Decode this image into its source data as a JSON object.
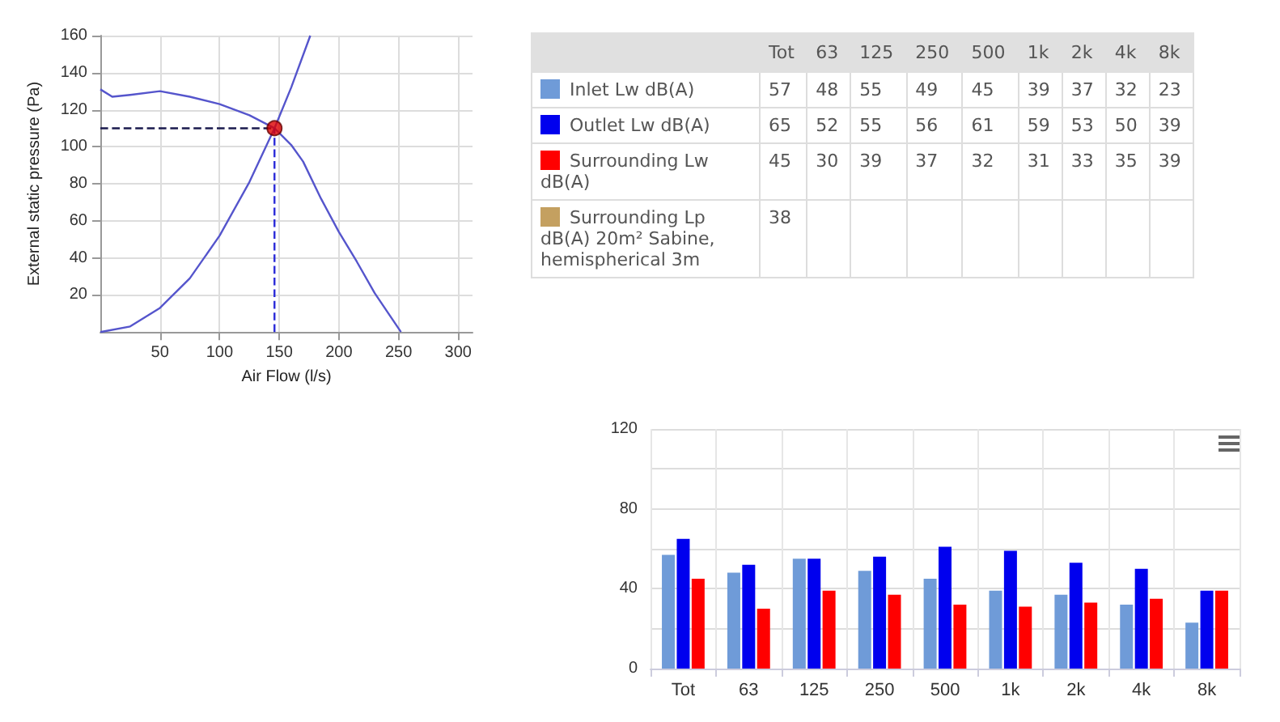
{
  "chart_data": [
    {
      "type": "line",
      "xlabel": "Air Flow (l/s)",
      "ylabel": "External static pressure (Pa)",
      "xlim": [
        0,
        312
      ],
      "xticks": [
        50,
        100,
        150,
        200,
        250,
        300
      ],
      "ylim": [
        0,
        160
      ],
      "yticks": [
        20,
        40,
        60,
        80,
        100,
        120,
        140,
        160
      ],
      "grid": true,
      "series": [
        {
          "color": "#5555cc",
          "x": [
            0,
            10,
            25,
            50,
            75,
            100,
            125,
            146,
            160,
            170,
            185,
            200,
            215,
            230,
            252
          ],
          "values": [
            131,
            127,
            128,
            130,
            127,
            123,
            117,
            110,
            101,
            92,
            72,
            54,
            38,
            21,
            0
          ]
        },
        {
          "color": "#5555cc",
          "x": [
            0,
            25,
            50,
            75,
            100,
            125,
            146,
            160,
            176
          ],
          "values": [
            0,
            3,
            13,
            29,
            52,
            81,
            110,
            132,
            160
          ]
        },
        {
          "type": "scatter",
          "color": "#dd0000",
          "x": [
            146
          ],
          "values": [
            110
          ]
        }
      ],
      "ref_lines": [
        {
          "axis": "y",
          "value": 110,
          "color": "#1a1a4e",
          "line_style": "dashed"
        },
        {
          "axis": "x",
          "value": 146,
          "color": "#2a2ad8",
          "line_style": "dashed"
        }
      ]
    },
    {
      "type": "other",
      "data_labels": true,
      "categories": [
        "Tot",
        "63",
        "125",
        "250",
        "500",
        "1k",
        "2k",
        "4k",
        "8k"
      ],
      "series": [
        {
          "name": "Inlet Lw dB(A)",
          "color": "#6f9bd8",
          "values": [
            57,
            48,
            55,
            49,
            45,
            39,
            37,
            32,
            23
          ]
        },
        {
          "name": "Outlet Lw dB(A)",
          "color": "#0000ee",
          "values": [
            65,
            52,
            55,
            56,
            61,
            59,
            53,
            50,
            39
          ]
        },
        {
          "name": "Surrounding Lw dB(A)",
          "color": "#ff0000",
          "values": [
            45,
            30,
            39,
            37,
            32,
            31,
            33,
            35,
            39
          ]
        },
        {
          "name": "Surrounding Lp dB(A) 20m² Sabine, hemispherical 3m",
          "color": "#c4a060",
          "values": [
            38,
            null,
            null,
            null,
            null,
            null,
            null,
            null,
            null
          ]
        }
      ]
    },
    {
      "type": "bar",
      "categories": [
        "Tot",
        "63",
        "125",
        "250",
        "500",
        "1k",
        "2k",
        "4k",
        "8k"
      ],
      "ylim": [
        0,
        120
      ],
      "yticks": [
        0,
        40,
        80,
        120
      ],
      "grid": true,
      "series": [
        {
          "color": "#6f9bd8",
          "values": [
            57,
            48,
            55,
            49,
            45,
            39,
            37,
            32,
            23
          ]
        },
        {
          "color": "#0000ee",
          "values": [
            65,
            52,
            55,
            56,
            61,
            59,
            53,
            50,
            39
          ]
        },
        {
          "color": "#ff0000",
          "values": [
            45,
            30,
            39,
            37,
            32,
            31,
            33,
            35,
            39
          ]
        }
      ]
    }
  ]
}
